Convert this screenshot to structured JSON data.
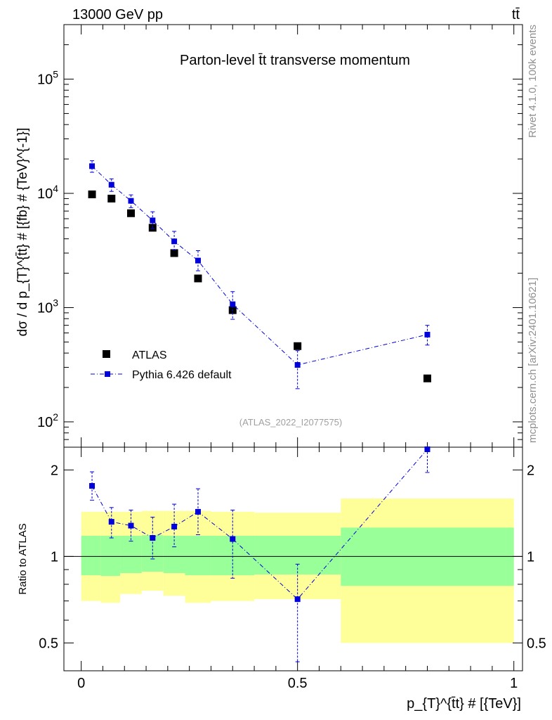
{
  "header": {
    "energy_label": "13000 GeV pp",
    "process_label": "tt̄"
  },
  "side_labels": {
    "rivet": "Rivet 4.1.0,  100k events",
    "source": "mcplots.cern.ch [arXiv:2401.10621]"
  },
  "chart_data": [
    {
      "type": "scatter",
      "title": "Parton-level t̄t transverse momentum",
      "watermark": "(ATLAS_2022_I2077575)",
      "ylabel": "dσ / d p_{T}^{t̄t} # [{fb} # {TeV}^{-1}]",
      "yscale": "log",
      "ylim": [
        60,
        300000
      ],
      "xlim": [
        -0.04,
        1.02
      ],
      "y_ticks": [
        {
          "value": 100,
          "base": "10",
          "exp": "2"
        },
        {
          "value": 1000,
          "base": "10",
          "exp": "3"
        },
        {
          "value": 10000,
          "base": "10",
          "exp": "4"
        },
        {
          "value": 100000,
          "base": "10",
          "exp": "5"
        }
      ],
      "legend_position": "bottom-left",
      "series": [
        {
          "name": "ATLAS",
          "style": "markers",
          "color": "#000000",
          "x": [
            0.025,
            0.07,
            0.115,
            0.165,
            0.215,
            0.27,
            0.35,
            0.5,
            0.8
          ],
          "y": [
            9800,
            9000,
            6700,
            5000,
            3000,
            1800,
            950,
            460,
            240
          ]
        },
        {
          "name": "Pythia 6.426 default",
          "style": "line-markers",
          "color": "#0000dd",
          "x": [
            0.025,
            0.07,
            0.115,
            0.165,
            0.215,
            0.27,
            0.35,
            0.5,
            0.8
          ],
          "y": [
            17300,
            11900,
            8600,
            5800,
            3800,
            2580,
            1070,
            315,
            580
          ],
          "y_err_low": [
            15300,
            10400,
            7500,
            4900,
            3200,
            2100,
            790,
            195,
            470
          ],
          "y_err_high": [
            19300,
            13400,
            9700,
            6900,
            4650,
            3150,
            1380,
            420,
            700
          ]
        }
      ]
    },
    {
      "type": "scatter",
      "ylabel": "Ratio to ATLAS",
      "xlabel": "p_{T}^{t̄t} # [{TeV}]",
      "yscale": "log",
      "ylim": [
        0.4,
        2.4
      ],
      "xlim": [
        -0.04,
        1.02
      ],
      "y_ticks": [
        {
          "value": 0.5,
          "label": "0.5"
        },
        {
          "value": 1,
          "label": "1"
        },
        {
          "value": 2,
          "label": "2"
        }
      ],
      "x_ticks": [
        {
          "value": 0,
          "label": "0"
        },
        {
          "value": 0.5,
          "label": "0.5"
        },
        {
          "value": 1,
          "label": "1"
        }
      ],
      "reference_line": 1,
      "uncertainty_bins": {
        "edges": [
          0,
          0.045,
          0.09,
          0.14,
          0.19,
          0.24,
          0.3,
          0.4,
          0.6,
          1.0
        ],
        "total_low": [
          0.7,
          0.69,
          0.74,
          0.76,
          0.73,
          0.69,
          0.7,
          0.71,
          0.5
        ],
        "total_high": [
          1.43,
          1.43,
          1.43,
          1.44,
          1.44,
          1.44,
          1.43,
          1.42,
          1.59
        ],
        "stat_low": [
          0.86,
          0.855,
          0.875,
          0.885,
          0.875,
          0.86,
          0.86,
          0.865,
          0.79
        ],
        "stat_high": [
          1.18,
          1.18,
          1.18,
          1.185,
          1.18,
          1.18,
          1.18,
          1.18,
          1.26
        ],
        "total_color": "#ffff99",
        "stat_color": "#99ff99"
      },
      "series": [
        {
          "name": "Pythia 6.426 default",
          "color": "#0000dd",
          "x": [
            0.025,
            0.07,
            0.115,
            0.165,
            0.215,
            0.27,
            0.35,
            0.5,
            0.8
          ],
          "y": [
            1.76,
            1.32,
            1.28,
            1.16,
            1.27,
            1.43,
            1.15,
            0.71,
            2.36
          ],
          "y_err_low": [
            1.57,
            1.16,
            1.13,
            0.98,
            1.08,
            1.19,
            0.84,
            0.43,
            1.96
          ],
          "y_err_high": [
            1.97,
            1.48,
            1.45,
            1.37,
            1.52,
            1.72,
            1.45,
            0.94,
            2.4
          ]
        }
      ]
    }
  ]
}
